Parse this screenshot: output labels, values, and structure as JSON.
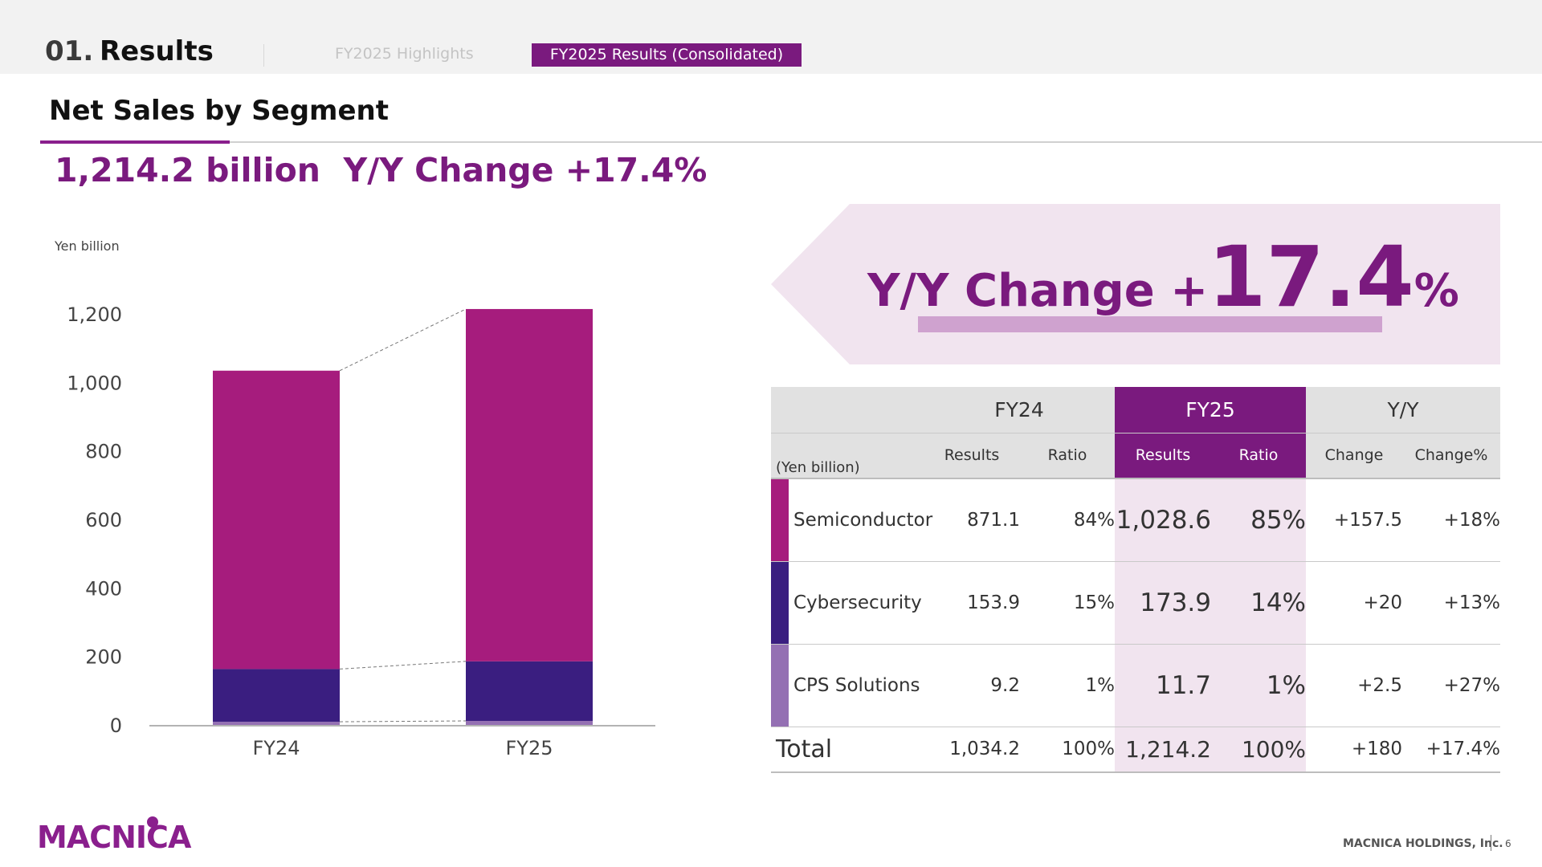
{
  "header": {
    "section_number": "01.",
    "section_title": "Results",
    "tabs": [
      {
        "label": "FY2025 Highlights",
        "active": false
      },
      {
        "label": "FY2025 Results (Consolidated)",
        "active": true
      }
    ]
  },
  "page": {
    "title": "Net Sales by Segment",
    "headline": "1,214.2 billion  Y/Y Change +17.4%"
  },
  "banner": {
    "label": "Y/Y Change +",
    "value": "17.4",
    "suffix": "%"
  },
  "colors": {
    "semiconductor": "#a61c7d",
    "cybersecurity": "#3a1e80",
    "cps_solutions": "#9470b3",
    "accent": "#7a1a7e"
  },
  "chart_data": {
    "type": "bar",
    "stacked": true,
    "unit_label": "Yen billion",
    "categories": [
      "FY24",
      "FY25"
    ],
    "series": [
      {
        "name": "CPS Solutions",
        "values": [
          9.2,
          11.7
        ]
      },
      {
        "name": "Cybersecurity",
        "values": [
          153.9,
          173.9
        ]
      },
      {
        "name": "Semiconductor",
        "values": [
          871.1,
          1028.6
        ]
      }
    ],
    "y_ticks": [
      "0",
      "200",
      "400",
      "600",
      "800",
      "1,000",
      "1,200"
    ],
    "ylim": [
      0,
      1200
    ],
    "grid": false,
    "legend": "none"
  },
  "table": {
    "groups": [
      "FY24",
      "FY25",
      "Y/Y"
    ],
    "subheaders": [
      "Results",
      "Ratio",
      "Results",
      "Ratio",
      "Change",
      "Change%"
    ],
    "unit": "(Yen billion)",
    "rows": [
      {
        "segment": "Semiconductor",
        "fy24_results": "871.1",
        "fy24_ratio": "84%",
        "fy25_results": "1,028.6",
        "fy25_ratio": "85%",
        "change": "+157.5",
        "change_pct": "+18%"
      },
      {
        "segment": "Cybersecurity",
        "fy24_results": "153.9",
        "fy24_ratio": "15%",
        "fy25_results": "173.9",
        "fy25_ratio": "14%",
        "change": "+20",
        "change_pct": "+13%"
      },
      {
        "segment": "CPS Solutions",
        "fy24_results": "9.2",
        "fy24_ratio": "1%",
        "fy25_results": "11.7",
        "fy25_ratio": "1%",
        "change": "+2.5",
        "change_pct": "+27%"
      }
    ],
    "total": {
      "label": "Total",
      "fy24_results": "1,034.2",
      "fy24_ratio": "100%",
      "fy25_results": "1,214.2",
      "fy25_ratio": "100%",
      "change": "+180",
      "change_pct": "+17.4%"
    }
  },
  "footer": {
    "logo_text": "MACNICA",
    "company": "MACNICA HOLDINGS, Inc.",
    "page_number": "6"
  }
}
